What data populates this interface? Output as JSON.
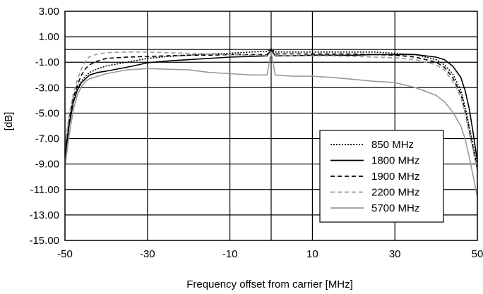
{
  "chart_data": {
    "type": "line",
    "title": "",
    "xlabel": "Frequency offset from carrier [MHz]",
    "ylabel": "[dB]",
    "xlim": [
      -50,
      50
    ],
    "ylim": [
      -15,
      3
    ],
    "x_ticks": [
      -50,
      -30,
      -10,
      10,
      30,
      50
    ],
    "x_tick_labels": [
      "-50",
      "-30",
      "-10",
      "10",
      "30",
      "50"
    ],
    "y_ticks": [
      3,
      1,
      -1,
      -3,
      -5,
      -7,
      -9,
      -11,
      -13,
      -15
    ],
    "y_tick_labels": [
      "3.00",
      "1.00",
      "-1.00",
      "-3.00",
      "-5.00",
      "-7.00",
      "-9.00",
      "-11.00",
      "-13.00",
      "-15.00"
    ],
    "vertical_gridlines": [
      -30,
      -10,
      0,
      10,
      30
    ],
    "horizontal_gridlines": [
      1,
      0,
      -1,
      -3,
      -5,
      -7,
      -9,
      -11,
      -13
    ],
    "grid": true,
    "legend_position": "lower-right",
    "series": [
      {
        "name": "850 MHz",
        "style": "dotted",
        "color": "#000000",
        "x": [
          -50,
          -49,
          -48,
          -47,
          -46,
          -45,
          -44,
          -42,
          -40,
          -35,
          -30,
          -25,
          -20,
          -15,
          -10,
          -5,
          -1,
          0,
          1,
          5,
          10,
          15,
          20,
          25,
          30,
          35,
          40,
          42,
          44,
          46,
          47,
          48,
          49,
          50
        ],
        "y": [
          -8.2,
          -5.8,
          -4.0,
          -3.0,
          -2.5,
          -2.1,
          -1.8,
          -1.5,
          -1.3,
          -1.0,
          -0.7,
          -0.55,
          -0.45,
          -0.35,
          -0.3,
          -0.2,
          -0.15,
          0.05,
          -0.2,
          -0.2,
          -0.2,
          -0.2,
          -0.2,
          -0.2,
          -0.3,
          -0.4,
          -0.8,
          -1.2,
          -1.9,
          -3.2,
          -4.5,
          -6.0,
          -7.6,
          -9.2
        ]
      },
      {
        "name": "1800 MHz",
        "style": "solid",
        "color": "#000000",
        "x": [
          -50,
          -49,
          -48,
          -47,
          -46,
          -45,
          -44,
          -42,
          -40,
          -35,
          -30,
          -25,
          -20,
          -15,
          -10,
          -5,
          -1,
          0,
          1,
          5,
          10,
          15,
          20,
          25,
          30,
          35,
          40,
          42,
          44,
          46,
          47,
          48,
          49,
          50
        ],
        "y": [
          -8.5,
          -6.0,
          -4.2,
          -3.2,
          -2.6,
          -2.3,
          -2.0,
          -1.8,
          -1.7,
          -1.4,
          -1.05,
          -0.9,
          -0.8,
          -0.7,
          -0.6,
          -0.55,
          -0.5,
          0.0,
          -0.5,
          -0.5,
          -0.45,
          -0.45,
          -0.45,
          -0.4,
          -0.4,
          -0.4,
          -0.6,
          -0.8,
          -1.3,
          -2.2,
          -3.2,
          -4.6,
          -6.6,
          -8.8
        ]
      },
      {
        "name": "1900 MHz",
        "style": "dashed",
        "color": "#000000",
        "x": [
          -50,
          -49,
          -48,
          -47,
          -46,
          -45,
          -44,
          -42,
          -40,
          -35,
          -30,
          -25,
          -20,
          -15,
          -10,
          -5,
          -1,
          0,
          1,
          5,
          10,
          15,
          20,
          25,
          30,
          35,
          40,
          42,
          44,
          46,
          47,
          48,
          49,
          50
        ],
        "y": [
          -8.0,
          -5.6,
          -3.8,
          -2.8,
          -2.0,
          -1.5,
          -1.2,
          -0.9,
          -0.7,
          -0.6,
          -0.55,
          -0.5,
          -0.45,
          -0.45,
          -0.4,
          -0.4,
          -0.4,
          -0.05,
          -0.35,
          -0.35,
          -0.35,
          -0.35,
          -0.35,
          -0.4,
          -0.45,
          -0.6,
          -1.0,
          -1.4,
          -2.2,
          -3.5,
          -4.8,
          -6.2,
          -7.8,
          -9.4
        ]
      },
      {
        "name": "2200 MHz",
        "style": "dashed",
        "color": "#999999",
        "x": [
          -50,
          -49,
          -48,
          -47,
          -46,
          -45,
          -44,
          -42,
          -40,
          -35,
          -30,
          -25,
          -20,
          -15,
          -10,
          -5,
          -1,
          0,
          1,
          5,
          10,
          15,
          20,
          25,
          30,
          35,
          40,
          42,
          44,
          46,
          47,
          48,
          49,
          50
        ],
        "y": [
          -7.6,
          -5.2,
          -3.5,
          -2.4,
          -1.5,
          -0.9,
          -0.55,
          -0.35,
          -0.25,
          -0.2,
          -0.2,
          -0.25,
          -0.3,
          -0.35,
          -0.4,
          -0.45,
          -0.45,
          -0.2,
          -0.45,
          -0.5,
          -0.5,
          -0.5,
          -0.55,
          -0.6,
          -0.65,
          -0.8,
          -1.2,
          -1.6,
          -2.5,
          -3.7,
          -5.0,
          -6.5,
          -8.0,
          -9.5
        ]
      },
      {
        "name": "5700 MHz",
        "style": "solid",
        "color": "#999999",
        "x": [
          -50,
          -49,
          -48,
          -47,
          -46,
          -45,
          -44,
          -42,
          -40,
          -35,
          -30,
          -25,
          -20,
          -15,
          -10,
          -5,
          -1,
          0,
          1,
          5,
          10,
          15,
          20,
          25,
          30,
          35,
          40,
          42,
          44,
          46,
          47,
          48,
          49,
          50
        ],
        "y": [
          -9.2,
          -6.8,
          -4.8,
          -3.6,
          -2.9,
          -2.5,
          -2.3,
          -2.1,
          -1.9,
          -1.6,
          -1.5,
          -1.55,
          -1.6,
          -1.8,
          -1.9,
          -2.0,
          -2.0,
          -0.2,
          -2.0,
          -2.1,
          -2.1,
          -2.2,
          -2.35,
          -2.5,
          -2.6,
          -3.0,
          -3.6,
          -4.1,
          -4.9,
          -6.0,
          -7.0,
          -8.4,
          -10.0,
          -11.6
        ]
      }
    ]
  }
}
